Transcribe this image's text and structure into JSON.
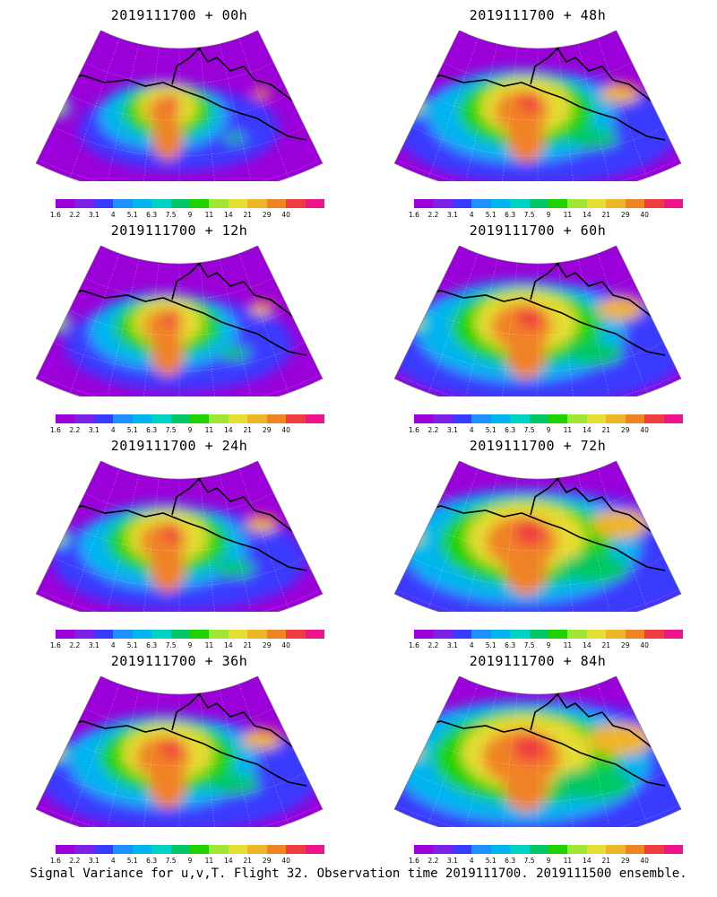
{
  "panels": [
    {
      "title": "2019111700 + 00h",
      "lead": "00h"
    },
    {
      "title": "2019111700 + 48h",
      "lead": "48h"
    },
    {
      "title": "2019111700 + 12h",
      "lead": "12h"
    },
    {
      "title": "2019111700 + 60h",
      "lead": "60h"
    },
    {
      "title": "2019111700 + 24h",
      "lead": "24h"
    },
    {
      "title": "2019111700 + 72h",
      "lead": "72h"
    },
    {
      "title": "2019111700 + 36h",
      "lead": "36h"
    },
    {
      "title": "2019111700 + 84h",
      "lead": "84h"
    }
  ],
  "colorbar": {
    "ticks": [
      "1.6",
      "2.2",
      "3.1",
      "4",
      "5.1",
      "6.3",
      "7.5",
      "9",
      "11",
      "14",
      "21",
      "29",
      "40"
    ],
    "colors": [
      "#9b00d8",
      "#7b22e6",
      "#3a3aff",
      "#1e90ff",
      "#00b4f0",
      "#00d2c8",
      "#00c864",
      "#1ed200",
      "#a0e632",
      "#e6dc32",
      "#f0b428",
      "#f08228",
      "#f03c3c",
      "#f0148c"
    ]
  },
  "footer": "Signal Variance for u,v,T. Flight 32. Observation time 2019111700. 2019111500 ensemble."
}
